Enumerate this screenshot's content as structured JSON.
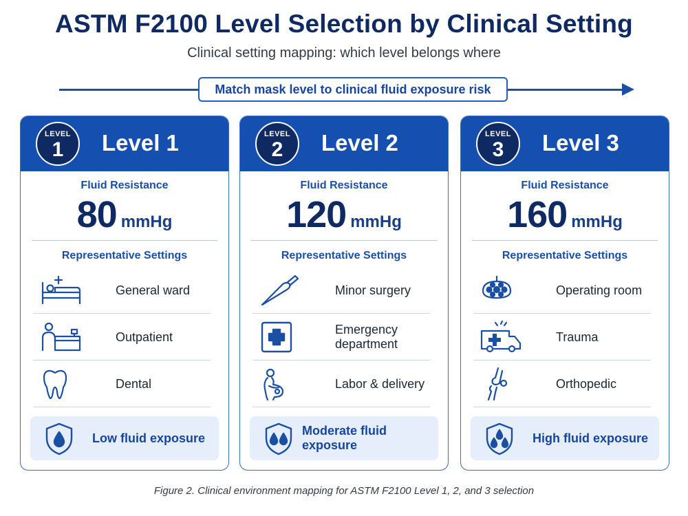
{
  "title": "ASTM F2100 Level Selection by Clinical Setting",
  "subtitle": "Clinical setting mapping: which level belongs where",
  "arrow_label": "Match mask level to clinical fluid exposure risk",
  "colors": {
    "header_blue": "#1550b0",
    "navy": "#0f2a63",
    "accent": "#1a4fa3",
    "panel_bg": "#e5eefa"
  },
  "cards": [
    {
      "badge_word": "LEVEL",
      "badge_num": "1",
      "title": "Level 1",
      "fluid_label": "Fluid Resistance",
      "fluid_value": "80",
      "fluid_unit": "mmHg",
      "settings_label": "Representative Settings",
      "settings": [
        {
          "icon": "hospital-bed-icon",
          "text": "General ward"
        },
        {
          "icon": "reception-desk-icon",
          "text": "Outpatient"
        },
        {
          "icon": "tooth-icon",
          "text": "Dental"
        }
      ],
      "exposure_icon": "shield-one-drop-icon",
      "exposure": "Low fluid exposure"
    },
    {
      "badge_word": "LEVEL",
      "badge_num": "2",
      "title": "Level 2",
      "fluid_label": "Fluid Resistance",
      "fluid_value": "120",
      "fluid_unit": "mmHg",
      "settings_label": "Representative Settings",
      "settings": [
        {
          "icon": "scalpel-icon",
          "text": "Minor surgery"
        },
        {
          "icon": "medical-cross-icon",
          "text": "Emergency department"
        },
        {
          "icon": "pregnant-woman-icon",
          "text": "Labor & delivery"
        }
      ],
      "exposure_icon": "shield-two-drops-icon",
      "exposure": "Moderate fluid exposure"
    },
    {
      "badge_word": "LEVEL",
      "badge_num": "3",
      "title": "Level 3",
      "fluid_label": "Fluid Resistance",
      "fluid_value": "160",
      "fluid_unit": "mmHg",
      "settings_label": "Representative Settings",
      "settings": [
        {
          "icon": "surgical-light-icon",
          "text": "Operating room"
        },
        {
          "icon": "ambulance-icon",
          "text": "Trauma"
        },
        {
          "icon": "knee-joint-icon",
          "text": "Orthopedic"
        }
      ],
      "exposure_icon": "shield-three-drops-icon",
      "exposure": "High fluid exposure"
    }
  ],
  "caption": "Figure 2. Clinical environment mapping for ASTM F2100 Level 1, 2, and 3 selection"
}
